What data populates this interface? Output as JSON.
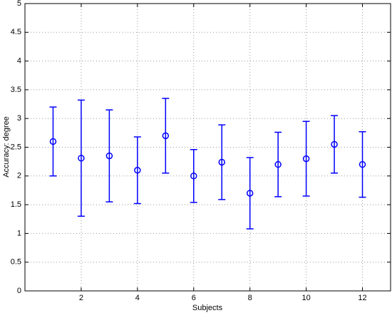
{
  "chart_data": {
    "type": "errorbar",
    "x_label": "Subjects",
    "y_label": "Accuracy: degree",
    "x": [
      1,
      2,
      3,
      4,
      5,
      6,
      7,
      8,
      9,
      10,
      11,
      12
    ],
    "series": [
      {
        "color": "#0000ff",
        "values": [
          2.6,
          2.31,
          2.35,
          2.1,
          2.7,
          2.0,
          2.24,
          1.7,
          2.2,
          2.3,
          2.55,
          2.2
        ],
        "errors": [
          0.6,
          1.01,
          0.8,
          0.58,
          0.65,
          0.46,
          0.65,
          0.62,
          0.56,
          0.65,
          0.5,
          0.57
        ]
      }
    ],
    "xlim": [
      0,
      13
    ],
    "ylim": [
      0,
      5
    ],
    "xticks": [
      2,
      4,
      6,
      8,
      10,
      12
    ],
    "yticks": [
      0,
      0.5,
      1,
      1.5,
      2,
      2.5,
      3,
      3.5,
      4,
      4.5,
      5
    ],
    "grid": true
  }
}
